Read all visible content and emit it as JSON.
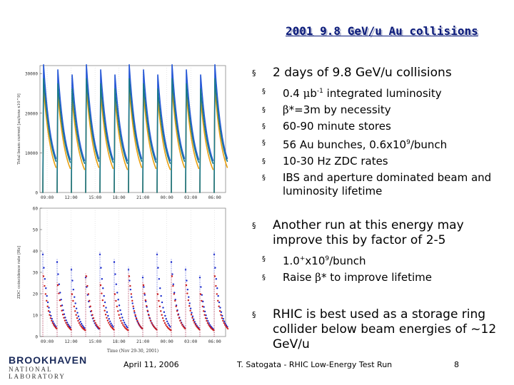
{
  "slide": {
    "title": "2001 9.8 GeV/u Au collisions",
    "bullet_marker": "§"
  },
  "bullets": [
    {
      "text": "2 days of 9.8 GeV/u collisions"
    },
    {
      "text": "Another run at this energy may improve this by factor of 2-5"
    },
    {
      "text": "RHIC is best used as a storage ring collider below beam energies of ~12 GeV/u"
    }
  ],
  "sub_bullets_1": [
    {
      "pre": "0.4 ",
      "sym": "m",
      "mid": "b",
      "sup": "-1",
      "post": " integrated luminosity"
    },
    {
      "pre": "",
      "sym": "b",
      "mid": "*=3m by necessity",
      "sup": "",
      "post": ""
    },
    {
      "pre": "60-90 minute stores",
      "sym": "",
      "mid": "",
      "sup": "",
      "post": ""
    },
    {
      "pre": "56 Au bunches, 0.6x10",
      "sym": "",
      "mid": "",
      "sup": "9",
      "post": "/bunch"
    },
    {
      "pre": "10-30 Hz ZDC rates",
      "sym": "",
      "mid": "",
      "sup": "",
      "post": ""
    },
    {
      "pre": "IBS and aperture dominated beam and luminosity lifetime",
      "sym": "",
      "mid": "",
      "sup": "",
      "post": ""
    }
  ],
  "sub_bullets_2": [
    {
      "pre": "1.0",
      "sym": "",
      "mid": "",
      "sup": "+",
      "post": "x10",
      "sup2": "9",
      "post2": "/bunch"
    },
    {
      "pre": "Raise ",
      "sym": "b",
      "mid": "* to improve lifetime",
      "sup": "",
      "post": "",
      "sup2": "",
      "post2": ""
    }
  ],
  "footer": {
    "date": "April 11, 2006",
    "author": "T. Satogata - RHIC Low-Energy Test Run",
    "page": "8",
    "logo_top": "BROOKHAVEN",
    "logo_bottom": "NATIONAL LABORATORY"
  },
  "chart_data": [
    {
      "type": "line",
      "ylabel": "Total beam current [au/ions x10^9]",
      "xticks": [
        "09:00",
        "12:00",
        "15:00",
        "18:00",
        "21:00",
        "00:00",
        "03:00",
        "06:00"
      ],
      "yticks": [
        0,
        10000,
        20000,
        30000
      ],
      "ylim": [
        0,
        32000
      ],
      "series_colors": [
        "#2a5bd7",
        "#e8a010",
        "#1a7a8a"
      ],
      "stores": 13
    },
    {
      "type": "scatter",
      "ylabel": "ZDC coincidence rate [Hz]",
      "xlabel": "Time (Nov 29-30, 2001)",
      "xticks": [
        "09:00",
        "12:00",
        "15:00",
        "18:00",
        "21:00",
        "00:00",
        "03:00",
        "06:00"
      ],
      "yticks": [
        0,
        10,
        20,
        30,
        40,
        50,
        60
      ],
      "ylim": [
        0,
        60
      ],
      "series_colors": [
        "#1a2acc",
        "#cc1a1a"
      ],
      "stores": 13
    }
  ]
}
